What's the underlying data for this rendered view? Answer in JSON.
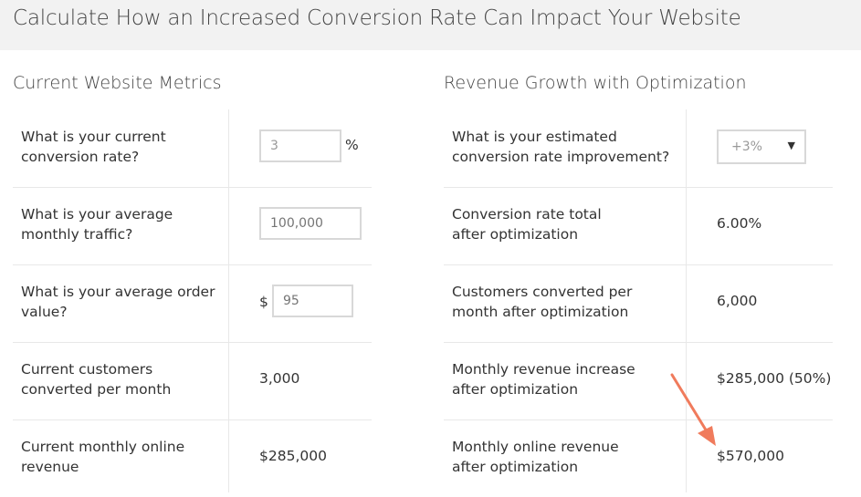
{
  "header": {
    "title": "Calculate How an Increased Conversion Rate Can Impact Your Website"
  },
  "current": {
    "title": "Current Website Metrics",
    "rows": [
      {
        "label": "What is your current conversion rate?",
        "input_value": "3",
        "unit": "%"
      },
      {
        "label": "What is your average monthly traffic?",
        "input_placeholder": "100,000"
      },
      {
        "label": "What is your average order value?",
        "currency": "$",
        "input_placeholder": "95"
      },
      {
        "label": "Current customers converted per month",
        "value": "3,000"
      },
      {
        "label": "Current monthly online revenue",
        "value": "$285,000"
      }
    ]
  },
  "growth": {
    "title": "Revenue Growth with Optimization",
    "rows": [
      {
        "label": "What is your estimated conversion rate improvement?",
        "select_value": "+3%"
      },
      {
        "label": "Conversion rate total after optimization",
        "value": "6.00%"
      },
      {
        "label": "Customers converted per month after optimization",
        "value": "6,000"
      },
      {
        "label": "Monthly revenue increase after optimization",
        "value": "$285,000 (50%)"
      },
      {
        "label": "Monthly online revenue after optimization",
        "value": "$570,000"
      }
    ]
  },
  "colors": {
    "header_bg": "#f2f2f2",
    "arrow": "#f07b5c",
    "border": "#d8d8d8"
  },
  "icons": {
    "select_caret": "caret-down-icon",
    "annotation": "arrow-annotation-icon"
  }
}
